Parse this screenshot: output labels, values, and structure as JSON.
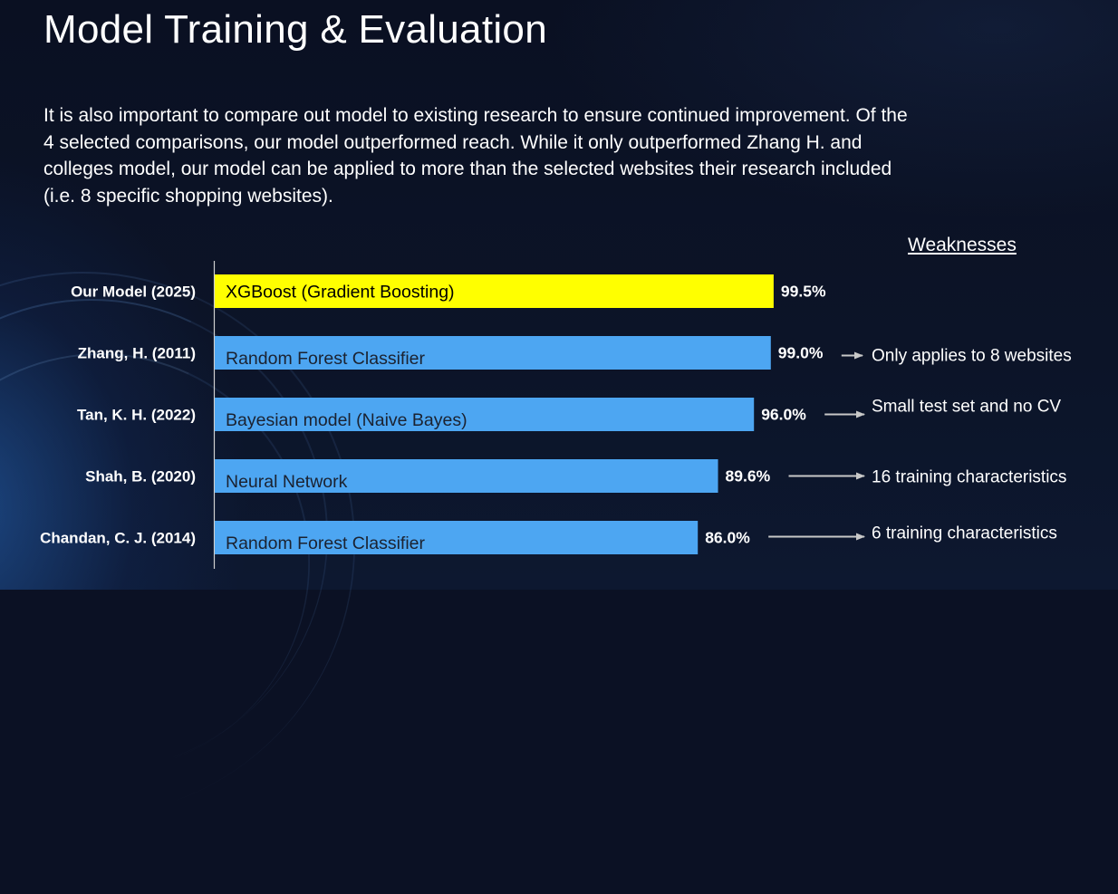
{
  "title": "Model Training & Evaluation",
  "intro": "It is also important to compare out model to existing research to ensure continued improvement. Of the 4 selected comparisons, our model outperformed reach. While it only outperformed Zhang H. and colleges model, our model can be applied to more than the selected websites their research included (i.e. 8 specific shopping websites).",
  "weaknesses_heading": "Weaknesses",
  "colors": {
    "highlight": "#ffff00",
    "bar": "#4da6f2",
    "arrow": "#c8c8c8",
    "axis": "#d0d0d0"
  },
  "chart_data": {
    "type": "bar",
    "orientation": "horizontal",
    "value_suffix": "%",
    "xlim": [
      0,
      100
    ],
    "categories": [
      "Our Model (2025)",
      "Zhang, H. (2011)",
      "Tan, K. H. (2022)",
      "Shah, B. (2020)",
      "Chandan, C. J. (2014)"
    ],
    "models": [
      "XGBoost (Gradient Boosting)",
      "Random Forest Classifier",
      "Bayesian model (Naive Bayes)",
      "Neural Network",
      "Random Forest Classifier"
    ],
    "values": [
      99.5,
      99.0,
      96.0,
      89.6,
      86.0
    ],
    "value_labels": [
      "99.5%",
      "99.0%",
      "96.0%",
      "89.6%",
      "86.0%"
    ],
    "weaknesses": [
      "",
      "Only applies to 8 websites",
      "Small test set and no CV",
      "16 training characteristics",
      "6 training characteristics"
    ],
    "highlight_index": 0
  }
}
